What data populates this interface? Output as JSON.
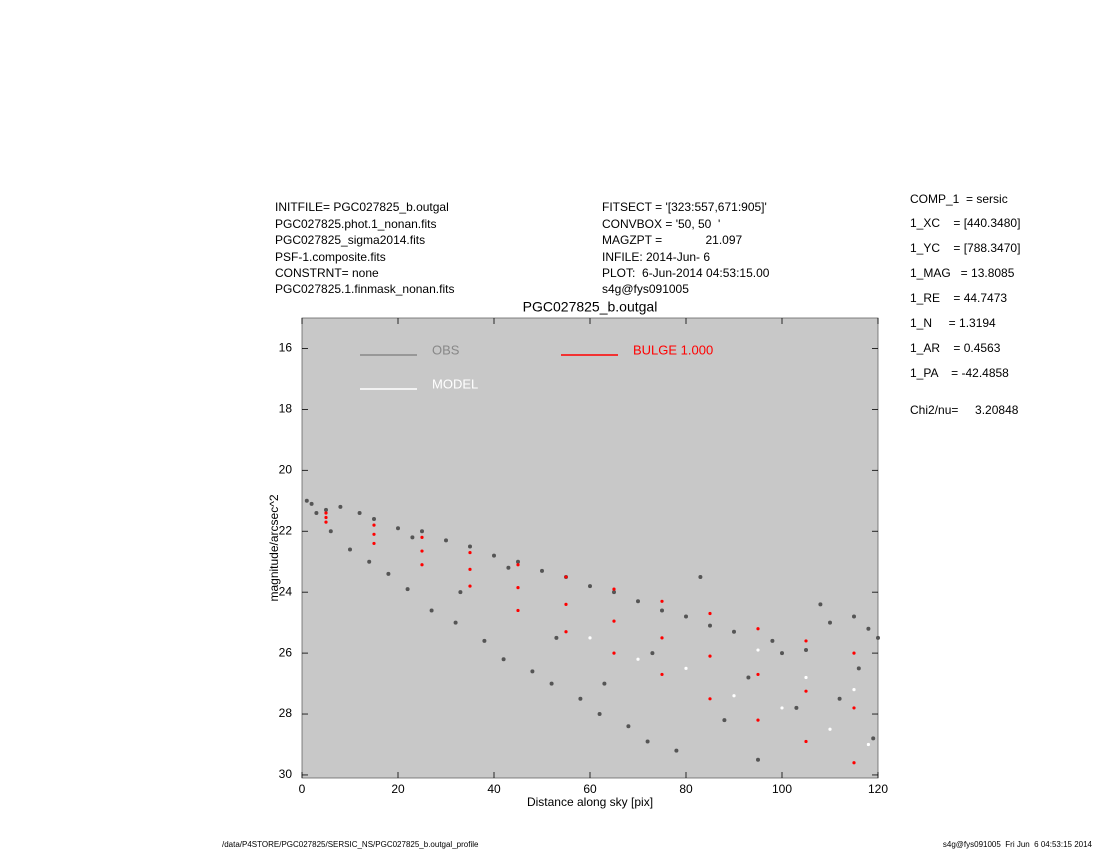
{
  "header": {
    "left": [
      "INITFILE= PGC027825_b.outgal",
      "PGC027825.phot.1_nonan.fits",
      "PGC027825_sigma2014.fits",
      "PSF-1.composite.fits",
      "CONSTRNT= none",
      "PGC027825.1.finmask_nonan.fits"
    ],
    "middle": [
      "FITSECT = '[323:557,671:905]'",
      "CONVBOX = '50, 50  '",
      "MAGZPT =             21.097",
      "INFILE: 2014-Jun- 6",
      "PLOT:  6-Jun-2014 04:53:15.00",
      "s4g@fys091005"
    ]
  },
  "params": [
    "COMP_1  = sersic",
    "1_XC    = [440.3480]",
    "1_YC    = [788.3470]",
    "1_MAG   = 13.8085",
    "1_RE    = 44.7473",
    "1_N     = 1.3194",
    "1_AR    = 0.4563",
    "1_PA    = -42.4858",
    "Chi2/nu=     3.20848"
  ],
  "footer": {
    "left": "/data/P4STORE/PGC027825/SERSIC_NS/PGC027825_b.outgal_profile",
    "right": "s4g@fys091005  Fri Jun  6 04:53:15 2014"
  },
  "chart_data": {
    "type": "scatter",
    "title": "PGC027825_b.outgal",
    "xlabel": "Distance along sky [pix]",
    "ylabel": "magnitude/arcsec^2",
    "xlim": [
      0,
      120
    ],
    "ylim": [
      30.1,
      15
    ],
    "xticks": [
      0,
      20,
      40,
      60,
      80,
      100,
      120
    ],
    "yticks": [
      16,
      18,
      20,
      22,
      24,
      26,
      28,
      30
    ],
    "series": [
      {
        "name": "OBS",
        "color": "#555555",
        "x": [
          1,
          2,
          3,
          5,
          6,
          8,
          10,
          12,
          14,
          15,
          18,
          20,
          22,
          25,
          27,
          30,
          32,
          35,
          38,
          40,
          42,
          45,
          48,
          50,
          52,
          55,
          58,
          60,
          62,
          65,
          68,
          70,
          72,
          75,
          78,
          80,
          85,
          88,
          90,
          95,
          98,
          100,
          105,
          108,
          110,
          112,
          115,
          118,
          120,
          119,
          116,
          103,
          93,
          83,
          73,
          63,
          53,
          43,
          33,
          23
        ],
        "values": [
          21.0,
          21.1,
          21.4,
          21.3,
          22.0,
          21.2,
          22.6,
          21.4,
          23.0,
          21.6,
          23.4,
          21.9,
          23.9,
          22.0,
          24.6,
          22.3,
          25.0,
          22.5,
          25.6,
          22.8,
          26.2,
          23.0,
          26.6,
          23.3,
          27.0,
          23.5,
          27.5,
          23.8,
          28.0,
          24.0,
          28.4,
          24.3,
          28.9,
          24.6,
          29.2,
          24.8,
          25.1,
          28.2,
          25.3,
          29.5,
          25.6,
          26.0,
          25.9,
          24.4,
          25.0,
          27.5,
          24.8,
          25.2,
          25.5,
          28.8,
          26.5,
          27.8,
          26.8,
          23.5,
          26.0,
          27.0,
          25.5,
          23.2,
          24.0,
          22.2
        ]
      },
      {
        "name": "MODEL",
        "color": "#ffffff",
        "x": [
          60,
          70,
          80,
          90,
          100,
          110,
          118,
          105,
          95,
          115
        ],
        "values": [
          25.5,
          26.2,
          26.5,
          27.4,
          27.8,
          28.5,
          29.0,
          26.8,
          25.9,
          27.2
        ]
      },
      {
        "name": "BULGE  1.000",
        "color": "#ff0000",
        "x": [
          5,
          15,
          25,
          35,
          45,
          55,
          65,
          75,
          85,
          95,
          105,
          115,
          5,
          15,
          25,
          35,
          45,
          55,
          65,
          75,
          85,
          95,
          105,
          115,
          5,
          15,
          25,
          35,
          45,
          55,
          65,
          75,
          85,
          95,
          105,
          115
        ],
        "values": [
          21.4,
          21.8,
          22.2,
          22.7,
          23.1,
          23.5,
          23.9,
          24.3,
          24.7,
          25.2,
          25.6,
          26.0,
          21.7,
          22.4,
          23.1,
          23.8,
          24.6,
          25.3,
          26.0,
          26.7,
          27.5,
          28.2,
          28.9,
          29.6,
          21.55,
          22.1,
          22.65,
          23.25,
          23.85,
          24.4,
          24.95,
          25.5,
          26.1,
          26.7,
          27.25,
          27.8
        ]
      }
    ]
  }
}
